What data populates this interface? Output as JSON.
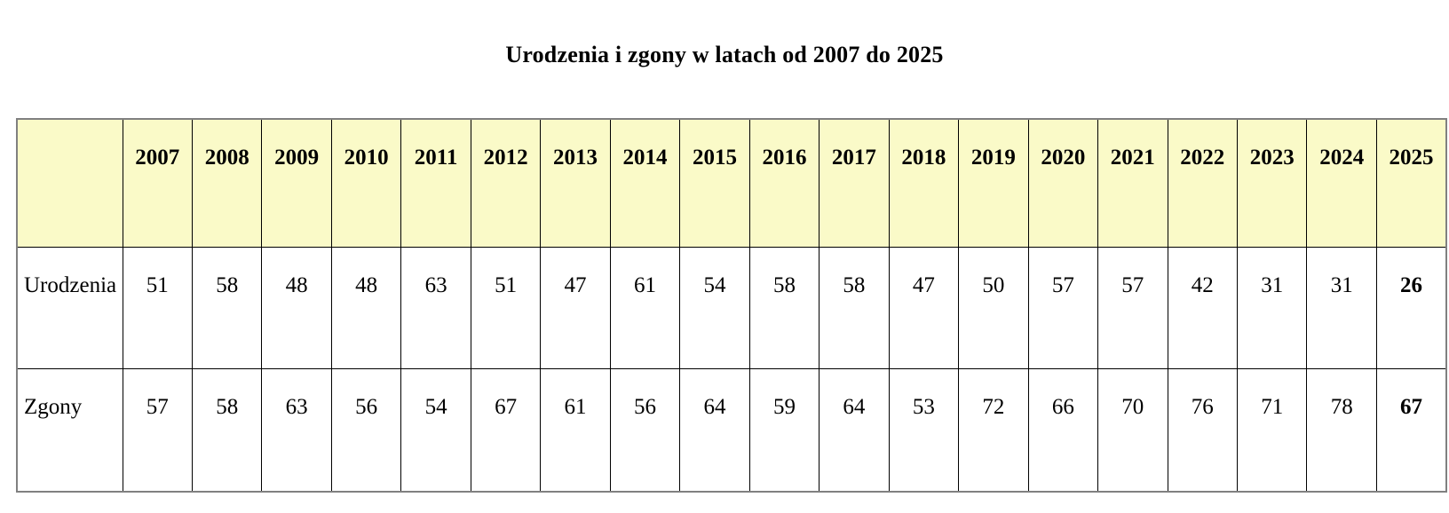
{
  "chart_data": {
    "type": "table",
    "title": "Urodzenia i zgony w latach od 2007 do 2025",
    "categories": [
      "2007",
      "2008",
      "2009",
      "2010",
      "2011",
      "2012",
      "2013",
      "2014",
      "2015",
      "2016",
      "2017",
      "2018",
      "2019",
      "2020",
      "2021",
      "2022",
      "2023",
      "2024",
      "2025"
    ],
    "series": [
      {
        "name": "Urodzenia",
        "values": [
          51,
          58,
          48,
          48,
          63,
          51,
          47,
          61,
          54,
          58,
          58,
          47,
          50,
          57,
          57,
          42,
          31,
          31,
          26
        ]
      },
      {
        "name": "Zgony",
        "values": [
          57,
          58,
          63,
          56,
          54,
          67,
          61,
          56,
          64,
          59,
          64,
          53,
          72,
          66,
          70,
          76,
          71,
          78,
          67
        ]
      }
    ],
    "layout": {
      "header_row_background": "#FAFAC8",
      "outer_border_color": "#808080",
      "inner_border_color": "#000000",
      "last_column_bold": true,
      "corner_cell_empty": true
    }
  },
  "colors": {
    "header_row_bg": "#FAFAC8",
    "outer_border": "#808080",
    "inner_border": "#000000",
    "text": "#000000",
    "page_bg": "#FFFFFF"
  }
}
